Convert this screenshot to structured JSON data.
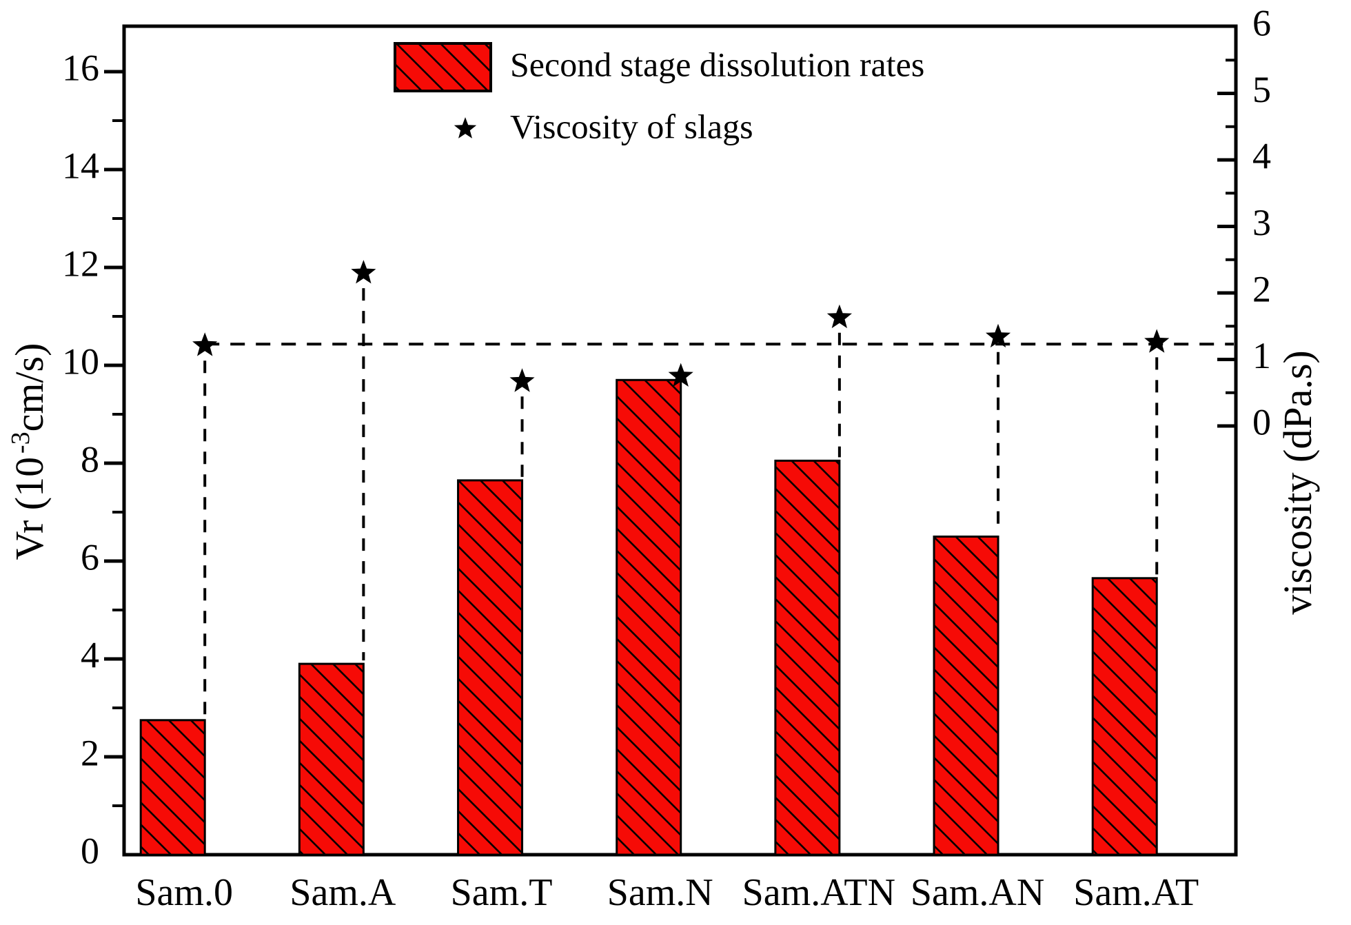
{
  "figure": {
    "background": "#ffffff",
    "frame_color": "#000000"
  },
  "chart_data": {
    "type": "bar",
    "title": "",
    "categories": [
      "Sam.0",
      "Sam.A",
      "Sam.T",
      "Sam.N",
      "Sam.ATN",
      "Sam.AN",
      "Sam.AT"
    ],
    "series": [
      {
        "name": "Second stage dissolution rates",
        "type": "bar",
        "axis": "left",
        "color": "#f60b06",
        "hatch": "backslash-diagonal",
        "values": [
          2.75,
          3.9,
          7.65,
          9.7,
          8.05,
          6.5,
          5.65
        ]
      },
      {
        "name": "Viscosity of slags",
        "type": "scatter",
        "axis": "right",
        "marker": "star",
        "color": "#000000",
        "values": [
          1.21,
          2.3,
          0.67,
          0.75,
          1.63,
          1.34,
          1.26
        ]
      }
    ],
    "left_axis": {
      "label_plain": "Vr (10-3cm/s)",
      "label_pre": "Vr (10",
      "label_sup": "-3",
      "label_post": "cm/s)",
      "min": 0,
      "max": 16.9,
      "tick_values": [
        0,
        2,
        4,
        6,
        8,
        10,
        12,
        14,
        16
      ],
      "tick_labels": [
        "0",
        "2",
        "4",
        "6",
        "8",
        "10",
        "12",
        "14",
        "16"
      ],
      "minor_step": 1
    },
    "right_axis": {
      "label": "viscosity (dPa.s)",
      "min_labeled": 0,
      "max": 6,
      "tick_values": [
        0,
        1,
        2,
        3,
        4,
        5,
        6
      ],
      "tick_labels": [
        "0",
        "1",
        "2",
        "3",
        "4",
        "5",
        "6"
      ],
      "minor_step": 0.5
    },
    "reference_line": {
      "axis": "right",
      "value": 1.23,
      "style": "dashed"
    },
    "drop_lines": {
      "style": "dashed",
      "from": "viscosity-star",
      "to": "bar-top"
    },
    "legend": {
      "entries": [
        {
          "swatch": "hatched-box",
          "label": "Second stage dissolution rates"
        },
        {
          "swatch": "star",
          "label": "Viscosity of slags"
        }
      ]
    },
    "layout_hints": {
      "legend_position": "top-center-inside",
      "grid": false,
      "bar_alignment": "right-edge-at-category-center"
    }
  }
}
